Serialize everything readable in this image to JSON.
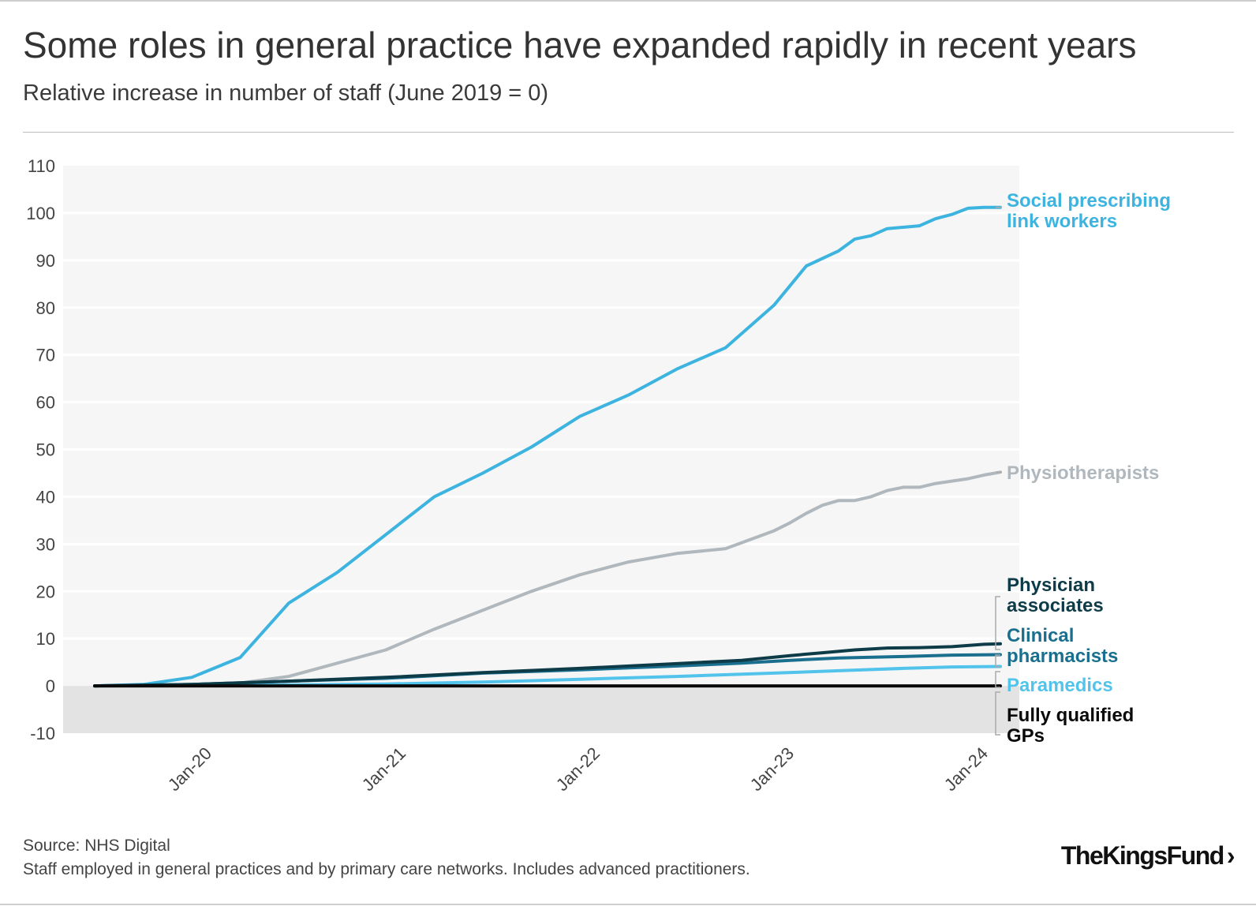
{
  "header": {
    "title": "Some roles in general practice have expanded rapidly in recent years",
    "subtitle": "Relative increase in number of staff (June 2019 = 0)"
  },
  "footer": {
    "source": "Source: NHS Digital",
    "note": "Staff employed in general practices and by primary care networks. Includes advanced practitioners.",
    "logo_text": "The King's Fund",
    "logo_display": "TheKingsFund",
    "logo_chevron": "›"
  },
  "chart_data": {
    "type": "line",
    "title": "Some roles in general practice have expanded rapidly in recent years",
    "ylabel": "Relative increase in number of staff (June 2019 = 0)",
    "xlabel": "",
    "ylim": [
      -10,
      110
    ],
    "yticks": [
      -10,
      0,
      10,
      20,
      30,
      40,
      50,
      60,
      70,
      80,
      90,
      100,
      110
    ],
    "x_range_months": [
      0,
      55
    ],
    "x_note": "months since June 2019 (0 = Jun-19, 55 = Jan-24)",
    "xticks": [
      {
        "m": 7,
        "label": "Jan-20"
      },
      {
        "m": 19,
        "label": "Jan-21"
      },
      {
        "m": 31,
        "label": "Jan-22"
      },
      {
        "m": 43,
        "label": "Jan-23"
      },
      {
        "m": 55,
        "label": "Jan-24"
      }
    ],
    "grid": true,
    "legend": "direct labels at right",
    "series": [
      {
        "name": "Social prescribing link workers",
        "label_lines": [
          "Social prescribing",
          "link workers"
        ],
        "color": "#3db4e0",
        "width": 4,
        "points": [
          [
            0,
            0
          ],
          [
            3,
            0.3
          ],
          [
            6,
            1.8
          ],
          [
            9,
            6
          ],
          [
            12,
            17.5
          ],
          [
            15,
            24
          ],
          [
            18,
            32
          ],
          [
            21,
            40
          ],
          [
            24,
            45
          ],
          [
            27,
            50.5
          ],
          [
            30,
            57
          ],
          [
            33,
            61.5
          ],
          [
            36,
            67
          ],
          [
            39,
            71.5
          ],
          [
            42,
            80.5
          ],
          [
            44,
            88.8
          ],
          [
            46,
            92
          ],
          [
            47,
            94.5
          ],
          [
            48,
            95.2
          ],
          [
            49,
            96.7
          ],
          [
            51,
            97.3
          ],
          [
            52,
            98.8
          ],
          [
            53,
            99.7
          ],
          [
            54,
            101
          ],
          [
            55,
            101.2
          ],
          [
            56,
            101.2
          ]
        ]
      },
      {
        "name": "Physiotherapists",
        "label_lines": [
          "Physiotherapists"
        ],
        "color": "#b0b8bd",
        "width": 4,
        "points": [
          [
            0,
            0
          ],
          [
            3,
            0.1
          ],
          [
            6,
            0.3
          ],
          [
            9,
            0.6
          ],
          [
            12,
            2
          ],
          [
            15,
            4.8
          ],
          [
            18,
            7.6
          ],
          [
            21,
            12
          ],
          [
            24,
            16
          ],
          [
            27,
            20
          ],
          [
            30,
            23.5
          ],
          [
            33,
            26.2
          ],
          [
            36,
            28
          ],
          [
            39,
            29
          ],
          [
            42,
            32.8
          ],
          [
            43,
            34.5
          ],
          [
            44,
            36.5
          ],
          [
            45,
            38.2
          ],
          [
            46,
            39.2
          ],
          [
            47,
            39.2
          ],
          [
            48,
            40
          ],
          [
            49,
            41.3
          ],
          [
            50,
            42
          ],
          [
            51,
            42
          ],
          [
            52,
            42.8
          ],
          [
            53,
            43.3
          ],
          [
            54,
            43.8
          ],
          [
            55,
            44.6
          ],
          [
            56,
            45.2
          ]
        ]
      },
      {
        "name": "Physician associates",
        "label_lines": [
          "Physician",
          "associates"
        ],
        "color": "#0d3b48",
        "width": 4,
        "points": [
          [
            0,
            0
          ],
          [
            6,
            0.3
          ],
          [
            12,
            1
          ],
          [
            18,
            1.8
          ],
          [
            24,
            2.8
          ],
          [
            30,
            3.7
          ],
          [
            36,
            4.7
          ],
          [
            40,
            5.4
          ],
          [
            43,
            6.4
          ],
          [
            45,
            7
          ],
          [
            47,
            7.6
          ],
          [
            49,
            8
          ],
          [
            51,
            8.1
          ],
          [
            53,
            8.3
          ],
          [
            55,
            8.8
          ],
          [
            56,
            8.9
          ]
        ]
      },
      {
        "name": "Clinical pharmacists",
        "label_lines": [
          "Clinical",
          "pharmacists"
        ],
        "color": "#1a6f8e",
        "width": 4,
        "points": [
          [
            0,
            0
          ],
          [
            6,
            0.3
          ],
          [
            12,
            1
          ],
          [
            18,
            1.6
          ],
          [
            24,
            2.7
          ],
          [
            30,
            3.4
          ],
          [
            36,
            4.2
          ],
          [
            40,
            4.8
          ],
          [
            43,
            5.4
          ],
          [
            46,
            5.9
          ],
          [
            50,
            6.2
          ],
          [
            53,
            6.5
          ],
          [
            56,
            6.6
          ]
        ]
      },
      {
        "name": "Paramedics",
        "label_lines": [
          "Paramedics"
        ],
        "color": "#52c3eb",
        "width": 4,
        "points": [
          [
            0,
            0
          ],
          [
            6,
            0.1
          ],
          [
            12,
            0.2
          ],
          [
            18,
            0.4
          ],
          [
            24,
            0.8
          ],
          [
            30,
            1.4
          ],
          [
            36,
            2
          ],
          [
            42,
            2.7
          ],
          [
            46,
            3.2
          ],
          [
            50,
            3.7
          ],
          [
            53,
            4
          ],
          [
            56,
            4.1
          ]
        ]
      },
      {
        "name": "Fully qualified GPs",
        "label_lines": [
          "Fully qualified",
          "GPs"
        ],
        "color": "#0a0a0a",
        "width": 4,
        "points": [
          [
            0,
            0
          ],
          [
            12,
            0
          ],
          [
            24,
            0
          ],
          [
            36,
            0
          ],
          [
            48,
            0
          ],
          [
            56,
            0
          ]
        ]
      }
    ]
  }
}
